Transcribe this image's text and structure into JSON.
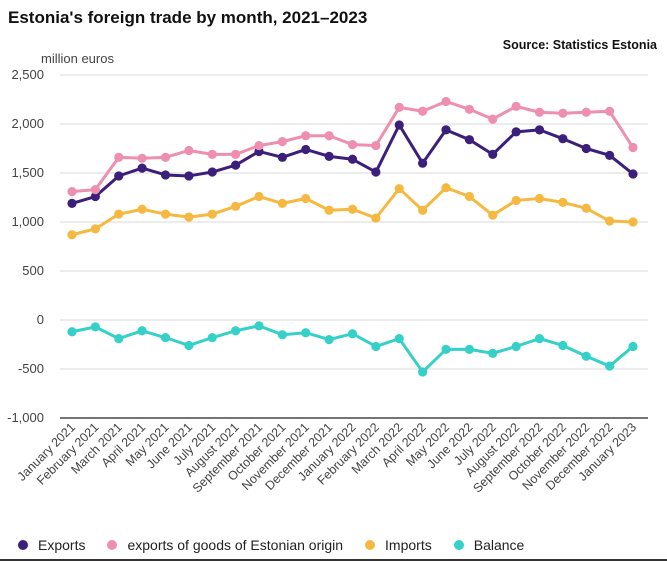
{
  "title": "Estonia's foreign trade by month, 2021–2023",
  "source": "Source: Statistics Estonia",
  "chart_data": {
    "type": "line",
    "ylabel": "million euros",
    "ylim": [
      -1000,
      2500
    ],
    "yticks": [
      -1000,
      -500,
      0,
      500,
      1000,
      1500,
      2000,
      2500
    ],
    "ytick_labels": [
      "-1,000",
      "-500",
      "0",
      "500",
      "1,000",
      "1,500",
      "2,000",
      "2,500"
    ],
    "grid": "horizontal",
    "legend_position": "bottom",
    "categories": [
      "January 2021",
      "February 2021",
      "March 2021",
      "April 2021",
      "May 2021",
      "June 2021",
      "July 2021",
      "August 2021",
      "September 2021",
      "October 2021",
      "November 2021",
      "December 2021",
      "January 2022",
      "February 2022",
      "March 2022",
      "April 2022",
      "May 2022",
      "June 2022",
      "July 2022",
      "August 2022",
      "September 2022",
      "October 2022",
      "November 2022",
      "December 2022",
      "January 2023"
    ],
    "series": [
      {
        "name": "Exports",
        "color": "#3b1f7a",
        "values": [
          1190,
          1260,
          1470,
          1550,
          1480,
          1470,
          1510,
          1580,
          1720,
          1660,
          1740,
          1670,
          1640,
          1510,
          1990,
          1600,
          1940,
          1840,
          1690,
          1920,
          1940,
          1850,
          1750,
          1680,
          1490
        ]
      },
      {
        "name": "exports of goods of Estonian origin",
        "color": "#ee8fb0",
        "values": [
          1310,
          1330,
          1660,
          1650,
          1660,
          1730,
          1690,
          1690,
          1780,
          1820,
          1880,
          1880,
          1790,
          1780,
          2170,
          2130,
          2230,
          2150,
          2050,
          2180,
          2120,
          2110,
          2120,
          2130,
          1760
        ]
      },
      {
        "name": "Imports",
        "color": "#f5b942",
        "values": [
          870,
          930,
          1080,
          1130,
          1080,
          1050,
          1080,
          1160,
          1260,
          1190,
          1240,
          1120,
          1130,
          1040,
          1340,
          1120,
          1350,
          1260,
          1070,
          1220,
          1240,
          1200,
          1140,
          1010,
          1000
        ]
      },
      {
        "name": "Balance",
        "color": "#35d0c8",
        "values": [
          -120,
          -70,
          -190,
          -110,
          -180,
          -260,
          -180,
          -110,
          -60,
          -150,
          -130,
          -200,
          -140,
          -270,
          -190,
          -530,
          -300,
          -300,
          -340,
          -270,
          -190,
          -260,
          -370,
          -470,
          -270
        ]
      }
    ]
  }
}
